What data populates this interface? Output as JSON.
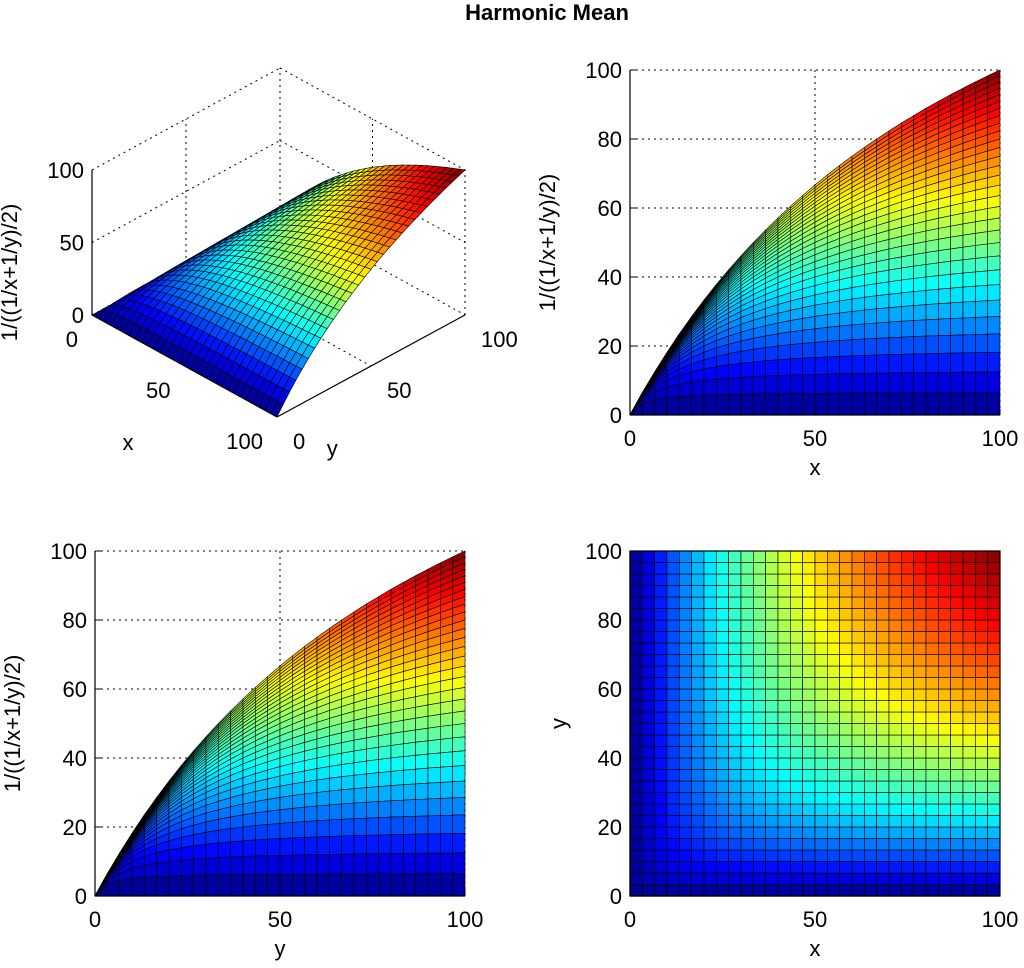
{
  "figure": {
    "title": "Harmonic Mean"
  },
  "chart_data": [
    {
      "type": "surface",
      "view": "3d",
      "function": "1/((1/x+1/y)/2)",
      "xlabel": "x",
      "ylabel": "y",
      "zlabel": "1/((1/x+1/y)/2)",
      "xlim": [
        0,
        100
      ],
      "ylim": [
        0,
        100
      ],
      "zlim": [
        0,
        100
      ],
      "xticks": [
        "0",
        "50",
        "100"
      ],
      "yticks": [
        "0",
        "50",
        "100"
      ],
      "zticks": [
        "0",
        "50",
        "100"
      ],
      "grid": true,
      "colormap": "jet",
      "mesh_steps": 30
    },
    {
      "type": "surface",
      "view": "side-x",
      "function": "1/((1/x+1/y)/2)",
      "xlabel": "x",
      "ylabel": "1/((1/x+1/y)/2)",
      "xlim": [
        0,
        100
      ],
      "ylim": [
        0,
        100
      ],
      "xticks": [
        "0",
        "50",
        "100"
      ],
      "yticks": [
        "0",
        "20",
        "40",
        "60",
        "80",
        "100"
      ],
      "grid": true,
      "colormap": "jet",
      "mesh_steps": 30
    },
    {
      "type": "surface",
      "view": "side-y",
      "function": "1/((1/x+1/y)/2)",
      "xlabel": "y",
      "ylabel": "1/((1/x+1/y)/2)",
      "xlim": [
        0,
        100
      ],
      "ylim": [
        0,
        100
      ],
      "xticks": [
        "0",
        "50",
        "100"
      ],
      "yticks": [
        "0",
        "20",
        "40",
        "60",
        "80",
        "100"
      ],
      "grid": true,
      "colormap": "jet",
      "mesh_steps": 30
    },
    {
      "type": "heatmap",
      "view": "top",
      "function": "1/((1/x+1/y)/2)",
      "xlabel": "x",
      "ylabel": "y",
      "xlim": [
        0,
        100
      ],
      "ylim": [
        0,
        100
      ],
      "xticks": [
        "0",
        "50",
        "100"
      ],
      "yticks": [
        "0",
        "20",
        "40",
        "60",
        "80",
        "100"
      ],
      "grid": false,
      "colormap": "jet",
      "mesh_steps": 30
    }
  ]
}
